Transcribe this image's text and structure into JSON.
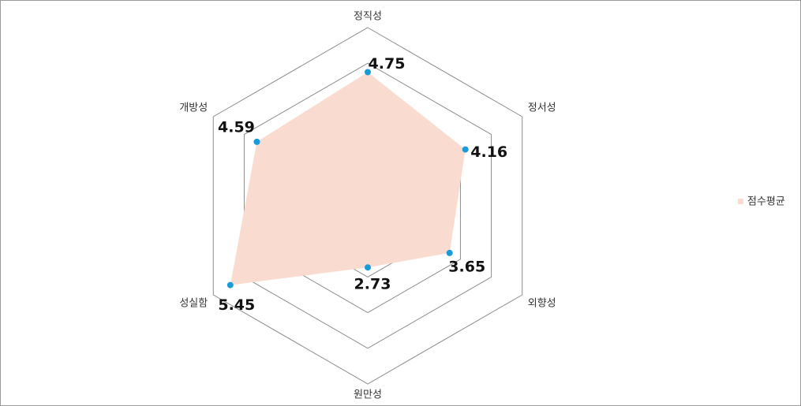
{
  "chart_data": {
    "type": "radar",
    "categories": [
      "정직성",
      "정서성",
      "외향성",
      "원만성",
      "성실함",
      "개방성"
    ],
    "series": [
      {
        "name": "점수평균",
        "color": "#f9dccf",
        "marker_color": "#1a9ad6",
        "values": [
          4.75,
          4.16,
          3.65,
          2.73,
          5.45,
          4.59
        ]
      }
    ],
    "rlim": [
      1,
      6
    ],
    "rticks": [
      1,
      2,
      3,
      4,
      5,
      6
    ],
    "grid": true,
    "legend": "right"
  }
}
